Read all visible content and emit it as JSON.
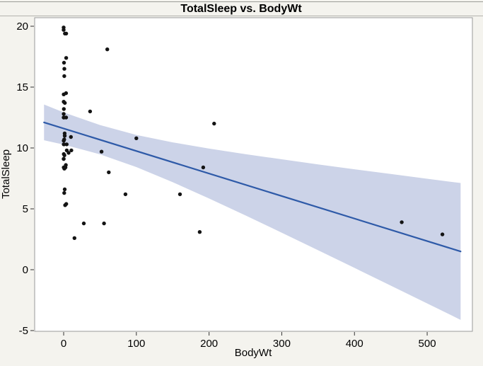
{
  "chart_data": {
    "type": "scatter",
    "title": "TotalSleep vs. BodyWt",
    "xlabel": "BodyWt",
    "ylabel": "TotalSleep",
    "xlim": [
      -39.9,
      562.2
    ],
    "ylim": [
      -5.06,
      20.7
    ],
    "xticks": [
      0,
      100,
      200,
      300,
      400,
      500
    ],
    "yticks": [
      20,
      15,
      10,
      5,
      0,
      -5
    ],
    "grid": false,
    "legend": "none",
    "points": [
      [
        0.005,
        9.1
      ],
      [
        0.01,
        19.9
      ],
      [
        0.023,
        19.7
      ],
      [
        0.023,
        12.5
      ],
      [
        0.048,
        12.8
      ],
      [
        0.06,
        10.3
      ],
      [
        0.075,
        8.4
      ],
      [
        0.101,
        13.8
      ],
      [
        0.104,
        9.1
      ],
      [
        0.12,
        14.4
      ],
      [
        0.122,
        10.6
      ],
      [
        0.2,
        9.5
      ],
      [
        0.28,
        13.2
      ],
      [
        0.425,
        12.5
      ],
      [
        0.48,
        17.0
      ],
      [
        0.55,
        10.3
      ],
      [
        0.75,
        6.3
      ],
      [
        0.785,
        10.7
      ],
      [
        0.9,
        15.9
      ],
      [
        0.92,
        16.5
      ],
      [
        1.0,
        8.3
      ],
      [
        1.04,
        9.4
      ],
      [
        1.35,
        11.2
      ],
      [
        1.4,
        11.0
      ],
      [
        1.41,
        6.6
      ],
      [
        1.62,
        13.7
      ],
      [
        1.7,
        19.4
      ],
      [
        2.0,
        5.3
      ],
      [
        2.5,
        8.4
      ],
      [
        3.0,
        8.6
      ],
      [
        3.3,
        14.5
      ],
      [
        3.385,
        12.5
      ],
      [
        3.5,
        17.4
      ],
      [
        3.5,
        19.4
      ],
      [
        3.6,
        5.4
      ],
      [
        4.19,
        10.3
      ],
      [
        4.235,
        9.8
      ],
      [
        6.8,
        9.6
      ],
      [
        10.0,
        10.9
      ],
      [
        10.55,
        9.8
      ],
      [
        14.83,
        2.6
      ],
      [
        27.66,
        3.8
      ],
      [
        36.33,
        13.0
      ],
      [
        52.16,
        9.7
      ],
      [
        55.5,
        3.8
      ],
      [
        60.0,
        18.1
      ],
      [
        62.0,
        8.0
      ],
      [
        85.0,
        6.2
      ],
      [
        100.0,
        10.8
      ],
      [
        160.0,
        6.2
      ],
      [
        187.1,
        3.1
      ],
      [
        192.0,
        8.4
      ],
      [
        207.0,
        12.0
      ],
      [
        465.0,
        3.9
      ],
      [
        521.0,
        2.9
      ]
    ],
    "regression_line": {
      "intercept": 11.6,
      "slope": -0.0185,
      "x_start": -27,
      "x_end": 546
    },
    "confidence_band": {
      "x": [
        -27,
        0,
        50,
        100,
        150,
        200,
        250,
        300,
        350,
        400,
        450,
        500,
        546
      ],
      "upper": [
        13.57,
        12.92,
        11.88,
        11.07,
        10.46,
        9.95,
        9.49,
        9.07,
        8.65,
        8.25,
        7.86,
        7.47,
        7.12
      ],
      "lower": [
        10.63,
        10.28,
        9.48,
        8.43,
        7.19,
        5.85,
        4.46,
        3.04,
        1.6,
        0.15,
        -1.31,
        -2.77,
        -4.12
      ]
    },
    "colors": {
      "page_bg": "#f4f3ee",
      "plot_bg": "#ffffff",
      "plot_border": "#999999",
      "band_fill": "#ccd3e8",
      "line_stroke": "#2e5aa8",
      "point_fill": "#141414",
      "tick_stroke": "#333333",
      "top_rule": "#9c9c97",
      "title_rule": "#b3b3ae"
    }
  }
}
